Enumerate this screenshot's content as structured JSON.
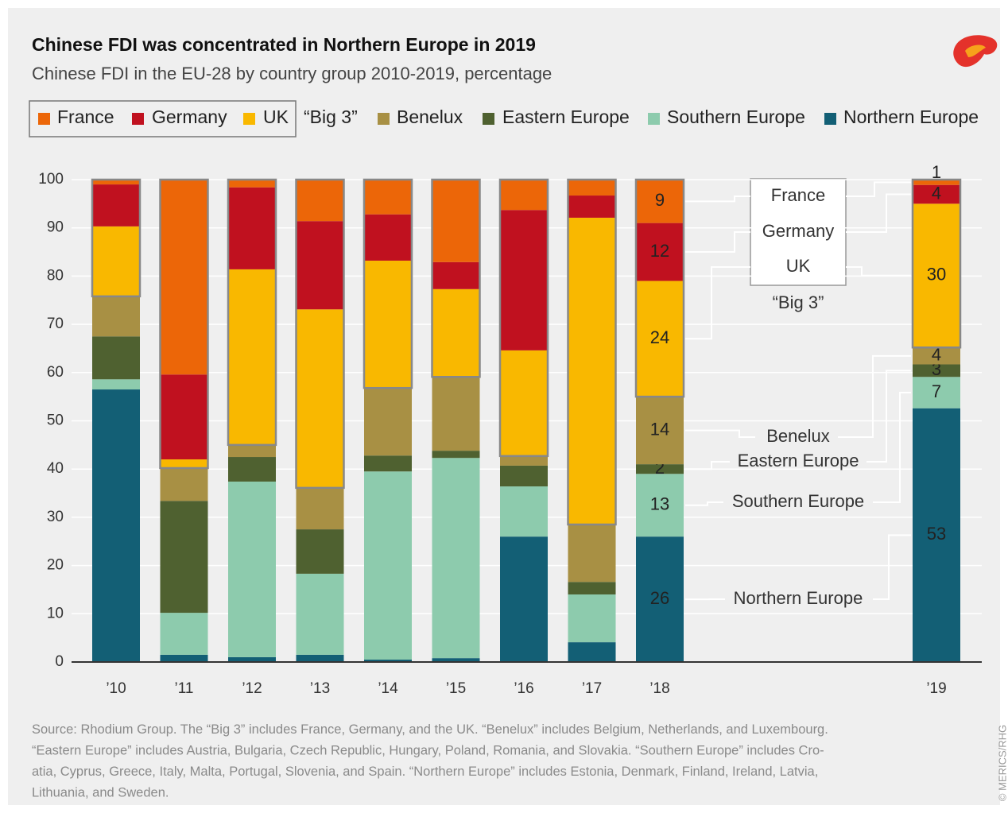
{
  "chart_data": {
    "type": "stacked_bar",
    "title": "Chinese FDI was concentrated in Northern Europe in 2019",
    "subtitle": "Chinese FDI in the EU-28 by country group 2010-2019, percentage",
    "group_label": "“Big 3”",
    "categories": [
      "’10",
      "’11",
      "’12",
      "’13",
      "’14",
      "’15",
      "’16",
      "’17",
      "’18",
      "’19"
    ],
    "series": [
      {
        "name": "France",
        "color": "#ec6608",
        "values": [
          1.0,
          40.4,
          1.6,
          8.6,
          7.2,
          17.1,
          6.3,
          3.3,
          9,
          1.1
        ],
        "value_labels": [
          null,
          null,
          null,
          null,
          null,
          null,
          null,
          null,
          "9",
          "1"
        ]
      },
      {
        "name": "Germany",
        "color": "#c0111f",
        "values": [
          8.7,
          17.6,
          17.0,
          18.3,
          9.6,
          5.6,
          29.1,
          4.6,
          12,
          3.9
        ],
        "value_labels": [
          null,
          null,
          null,
          null,
          null,
          null,
          null,
          null,
          "12",
          "4"
        ]
      },
      {
        "name": "UK",
        "color": "#f9b800",
        "values": [
          14.5,
          1.8,
          36.4,
          37.0,
          26.4,
          18.2,
          21.9,
          63.6,
          24,
          29.8
        ],
        "value_labels": [
          null,
          null,
          null,
          null,
          null,
          null,
          null,
          null,
          "24",
          "30"
        ]
      },
      {
        "name": "Benelux",
        "color": "#a89044",
        "values": [
          8.3,
          6.8,
          2.5,
          8.6,
          14.0,
          15.3,
          2.0,
          11.9,
          14,
          3.5
        ],
        "value_labels": [
          null,
          null,
          null,
          null,
          null,
          null,
          null,
          null,
          "14",
          "4"
        ]
      },
      {
        "name": "Eastern Europe",
        "color": "#4f6130",
        "values": [
          8.9,
          23.2,
          5.1,
          9.2,
          3.3,
          1.5,
          4.3,
          2.6,
          2,
          2.6
        ],
        "value_labels": [
          null,
          null,
          null,
          null,
          null,
          null,
          null,
          null,
          "2",
          "3"
        ]
      },
      {
        "name": "Southern Europe",
        "color": "#8dcbad",
        "values": [
          2.1,
          8.7,
          36.4,
          16.8,
          39.0,
          41.5,
          10.4,
          9.9,
          13,
          6.5
        ],
        "value_labels": [
          null,
          null,
          null,
          null,
          null,
          null,
          null,
          null,
          "13",
          "7"
        ]
      },
      {
        "name": "Northern Europe",
        "color": "#135f75",
        "values": [
          56.5,
          1.5,
          1.0,
          1.5,
          0.5,
          0.8,
          26.0,
          4.1,
          26,
          52.6
        ],
        "value_labels": [
          null,
          null,
          null,
          null,
          null,
          null,
          null,
          null,
          "26",
          "53"
        ]
      }
    ],
    "ylim": [
      0,
      100
    ],
    "yticks": [
      0,
      10,
      20,
      30,
      40,
      50,
      60,
      70,
      80,
      90,
      100
    ],
    "grid": true,
    "source": [
      "Source: Rhodium Group. The “Big 3” includes France, Germany, and the UK. “Benelux” includes Belgium, Netherlands, and Luxembourg.",
      "“Eastern Europe” includes Austria, Bulgaria, Czech Republic, Hungary, Poland, Romania, and Slovakia. “Southern Europe” includes Cro-",
      "atia, Cyprus, Greece, Italy, Malta, Portugal, Slovenia, and Spain. “Northern Europe” includes Estonia, Denmark, Finland, Ireland, Latvia,",
      "Lithuania, and Sweden."
    ],
    "credit": "© MERICS/RHG"
  }
}
